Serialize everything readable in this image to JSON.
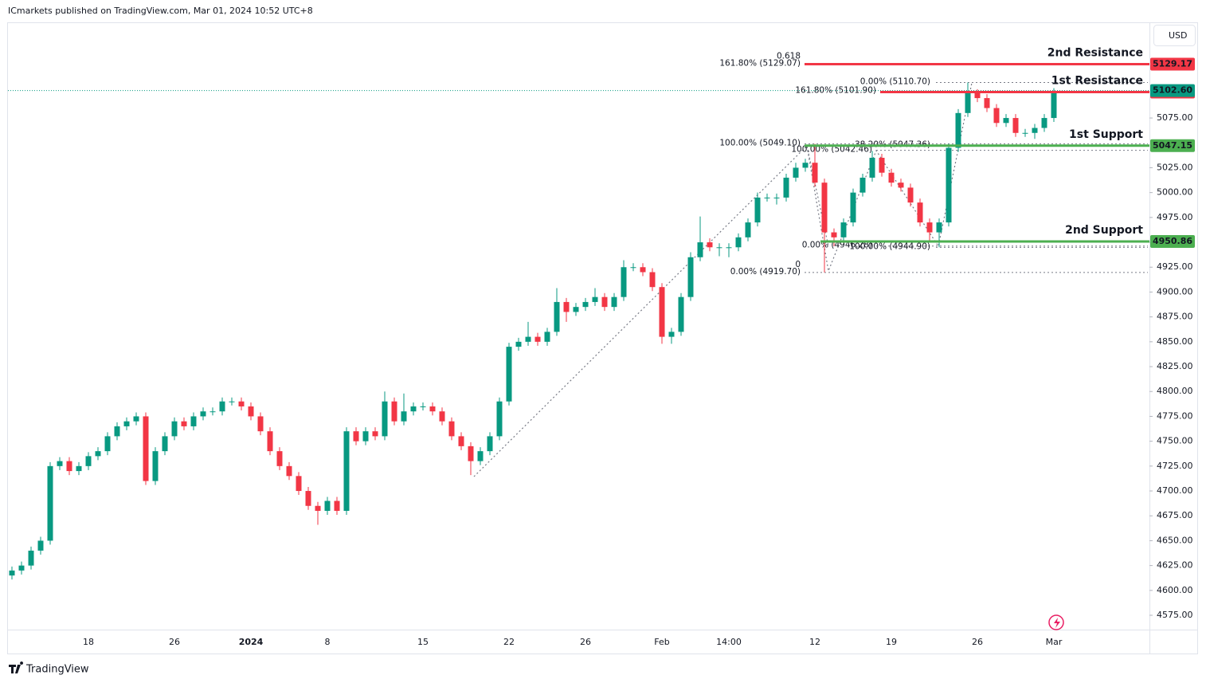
{
  "chart_data": {
    "type": "candlestick",
    "header": "ICmarkets published on TradingView.com, Mar 01, 2024 10:52 UTC+8",
    "brand": "TradingView",
    "currency": "USD",
    "up_color": "#089981",
    "down_color": "#f23645",
    "categories": [
      null,
      null,
      null,
      null,
      null,
      null,
      null,
      null,
      "18",
      null,
      null,
      null,
      null,
      null,
      null,
      null,
      null,
      "26",
      null,
      null,
      null,
      null,
      null,
      null,
      null,
      "2024",
      null,
      null,
      null,
      null,
      null,
      null,
      null,
      "8",
      null,
      null,
      null,
      null,
      null,
      null,
      null,
      null,
      null,
      "15",
      null,
      null,
      null,
      null,
      null,
      null,
      null,
      null,
      "22",
      null,
      null,
      null,
      null,
      null,
      null,
      null,
      "26",
      null,
      null,
      null,
      null,
      null,
      null,
      null,
      "Feb",
      null,
      null,
      null,
      null,
      null,
      null,
      "14:00",
      null,
      null,
      null,
      null,
      null,
      null,
      null,
      null,
      "12",
      null,
      null,
      null,
      null,
      null,
      null,
      null,
      "19",
      null,
      null,
      null,
      null,
      null,
      null,
      null,
      null,
      "26",
      null,
      null,
      null,
      null,
      null,
      null,
      null,
      "Mar"
    ],
    "open": [
      4615,
      4620,
      4625,
      4640,
      4650,
      4725,
      4730,
      4720,
      4725,
      4735,
      4740,
      4755,
      4765,
      4770,
      4775,
      4710,
      4740,
      4755,
      4770,
      4765,
      4775,
      4780,
      4780,
      4790,
      4790,
      4785,
      4775,
      4760,
      4740,
      4725,
      4715,
      4700,
      4685,
      4680,
      4690,
      4680,
      4760,
      4750,
      4760,
      4755,
      4790,
      4770,
      4780,
      4785,
      4785,
      4780,
      4770,
      4755,
      4745,
      4730,
      4740,
      4755,
      4790,
      4845,
      4850,
      4855,
      4850,
      4860,
      4890,
      4880,
      4885,
      4890,
      4895,
      4885,
      4895,
      4925,
      4925,
      4920,
      4905,
      4855,
      4860,
      4895,
      4935,
      4950,
      4945,
      4945,
      4945,
      4955,
      4970,
      4995,
      4995,
      4995,
      5015,
      5025,
      5030,
      5010,
      4960,
      4955,
      4970,
      5000,
      5015,
      5035,
      5020,
      5010,
      5005,
      4990,
      4970,
      4960,
      4970,
      5045,
      5080,
      5100,
      5095,
      5085,
      5070,
      5075,
      5060,
      5060,
      5065,
      5075
    ],
    "high": [
      4624,
      4629,
      4644,
      4654,
      4729,
      4734,
      4734,
      4729,
      4739,
      4744,
      4759,
      4769,
      4774,
      4779,
      4779,
      4744,
      4759,
      4774,
      4774,
      4779,
      4784,
      4784,
      4794,
      4794,
      4794,
      4789,
      4779,
      4764,
      4744,
      4729,
      4719,
      4704,
      4689,
      4694,
      4694,
      4764,
      4764,
      4764,
      4764,
      4800,
      4794,
      4798,
      4789,
      4789,
      4789,
      4784,
      4774,
      4759,
      4749,
      4744,
      4759,
      4794,
      4849,
      4854,
      4870,
      4859,
      4864,
      4904,
      4894,
      4889,
      4894,
      4904,
      4899,
      4899,
      4932,
      4929,
      4929,
      4924,
      4909,
      4864,
      4899,
      4940,
      4976,
      4954,
      4949,
      4949,
      4959,
      4974,
      5000,
      4999,
      4999,
      5019,
      5030,
      5034,
      5049,
      5014,
      4964,
      4974,
      5004,
      5019,
      5042,
      5039,
      5024,
      5014,
      5009,
      4994,
      4974,
      4974,
      5049,
      5084,
      5110.7,
      5104,
      5099,
      5089,
      5079,
      5079,
      5064,
      5069,
      5079,
      5105
    ],
    "low": [
      4611,
      4616,
      4621,
      4636,
      4646,
      4721,
      4716,
      4716,
      4721,
      4731,
      4736,
      4751,
      4761,
      4766,
      4706,
      4706,
      4736,
      4751,
      4761,
      4761,
      4771,
      4776,
      4776,
      4786,
      4781,
      4771,
      4756,
      4736,
      4721,
      4711,
      4696,
      4681,
      4666,
      4676,
      4676,
      4676,
      4746,
      4746,
      4751,
      4751,
      4766,
      4766,
      4776,
      4781,
      4776,
      4766,
      4751,
      4741,
      4716,
      4726,
      4736,
      4751,
      4786,
      4841,
      4846,
      4846,
      4846,
      4856,
      4870,
      4876,
      4881,
      4886,
      4881,
      4881,
      4891,
      4921,
      4916,
      4901,
      4848,
      4848,
      4856,
      4891,
      4931,
      4941,
      4936,
      4935,
      4941,
      4951,
      4966,
      4991,
      4988,
      4991,
      5011,
      5021,
      5006,
      4919.7,
      4946,
      4951,
      4966,
      4996,
      5011,
      5016,
      5006,
      5001,
      4986,
      4966,
      4950,
      4945,
      4966,
      5041,
      5076,
      5091,
      5081,
      5066,
      5066,
      5056,
      5056,
      5054,
      5061,
      5071
    ],
    "close": [
      4620,
      4625,
      4640,
      4650,
      4725,
      4730,
      4720,
      4725,
      4735,
      4740,
      4755,
      4765,
      4770,
      4775,
      4710,
      4740,
      4755,
      4770,
      4765,
      4775,
      4780,
      4780,
      4790,
      4790,
      4785,
      4775,
      4760,
      4740,
      4725,
      4715,
      4700,
      4685,
      4680,
      4690,
      4680,
      4760,
      4750,
      4760,
      4755,
      4790,
      4770,
      4780,
      4785,
      4785,
      4780,
      4770,
      4755,
      4745,
      4730,
      4740,
      4755,
      4790,
      4845,
      4850,
      4855,
      4850,
      4860,
      4890,
      4880,
      4885,
      4890,
      4895,
      4885,
      4895,
      4925,
      4925,
      4920,
      4905,
      4855,
      4860,
      4895,
      4935,
      4950,
      4945,
      4945,
      4945,
      4955,
      4970,
      4995,
      4995,
      4995,
      5015,
      5025,
      5030,
      5010,
      4960,
      4955,
      4970,
      5000,
      5015,
      5035,
      5020,
      5010,
      5005,
      4990,
      4970,
      4960,
      4970,
      5045,
      5080,
      5100,
      5095,
      5085,
      5070,
      5075,
      5060,
      5060,
      5065,
      5075,
      5101.08
    ],
    "ylim": [
      4560.6,
      5169.6
    ],
    "yticks": [
      {
        "value": 4575,
        "label": "4575.00"
      },
      {
        "value": 4600,
        "label": "4600.00"
      },
      {
        "value": 4625,
        "label": "4625.00"
      },
      {
        "value": 4650,
        "label": "4650.00"
      },
      {
        "value": 4675,
        "label": "4675.00"
      },
      {
        "value": 4700,
        "label": "4700.00"
      },
      {
        "value": 4725,
        "label": "4725.00"
      },
      {
        "value": 4750,
        "label": "4750.00"
      },
      {
        "value": 4775,
        "label": "4775.00"
      },
      {
        "value": 4800,
        "label": "4800.00"
      },
      {
        "value": 4825,
        "label": "4825.00"
      },
      {
        "value": 4850,
        "label": "4850.00"
      },
      {
        "value": 4875,
        "label": "4875.00"
      },
      {
        "value": 4900,
        "label": "4900.00"
      },
      {
        "value": 4925,
        "label": "4925.00"
      },
      {
        "value": 4950,
        "label": "4950.00"
      },
      {
        "value": 4975,
        "label": "4975.00"
      },
      {
        "value": 5000,
        "label": "5000.00"
      },
      {
        "value": 5025,
        "label": "5025.00"
      },
      {
        "value": 5075,
        "label": "5075.00"
      }
    ],
    "last_price": {
      "value": 5102.6,
      "label": "5102.60",
      "color": "#089981"
    },
    "levels": [
      {
        "name": "2nd Resistance",
        "value": 5129.17,
        "color": "#f23645"
      },
      {
        "name": "1st Resistance",
        "value": 5101.08,
        "color": "#f23645"
      },
      {
        "name": "1st Support",
        "value": 5047.15,
        "color": "#4caf50"
      },
      {
        "name": "2nd Support",
        "value": 4950.86,
        "color": "#4caf50"
      }
    ],
    "fib_levels": [
      {
        "value": 5129.07,
        "label": "161.80% (5129.07)",
        "ratio": "0.618",
        "color": "#c9a227"
      },
      {
        "value": 5110.7,
        "label": "0.00% (5110.70)",
        "color": "#787b86"
      },
      {
        "value": 5101.9,
        "label": "161.80% (5101.90)",
        "color": "#c9a227"
      },
      {
        "value": 5049.1,
        "label": "100.00% (5049.10)",
        "color": "#787b86"
      },
      {
        "value": 5047.36,
        "label": "38.20% (5047.36)",
        "color": "#2962ff"
      },
      {
        "value": 5042.46,
        "label": "100.00% (5042.46)",
        "color": "#787b86"
      },
      {
        "value": 4946.28,
        "label": "0.00% (4946.28)",
        "color": "#787b86"
      },
      {
        "value": 4944.9,
        "label": "100.00% (4944.90)",
        "color": "#787b86"
      },
      {
        "value": 4919.7,
        "label": "0.00% (4919.70)",
        "ratio": "0",
        "color": "#787b86"
      }
    ]
  }
}
